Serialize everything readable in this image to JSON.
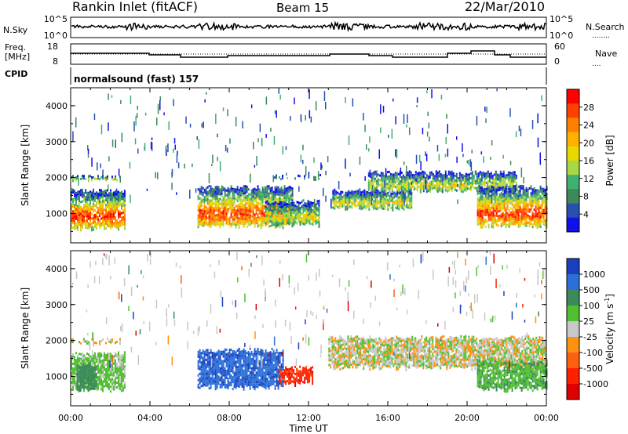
{
  "header": {
    "station": "Rankin Inlet (fitACF)",
    "beam": "Beam 15",
    "date": "22/Mar/2010"
  },
  "top_panels": {
    "nsky_label": "N.Sky",
    "nsearch_label": "N.Search",
    "nsearch_key": "........",
    "count_ticks": [
      "10^5",
      "10^0"
    ],
    "freq_label_1": "Freq.",
    "freq_label_2": "[MHz]",
    "freq_ticks": [
      "18",
      "8"
    ],
    "nave_label": "Nave",
    "nave_key": "....",
    "nave_ticks": [
      "60",
      "0"
    ],
    "cpid_label": "CPID",
    "cpid_text": "normalsound (fast) 157"
  },
  "axes": {
    "xlabel": "Time UT",
    "ylabel": "Slant Range [km]",
    "xticks": [
      "00:00",
      "04:00",
      "08:00",
      "12:00",
      "16:00",
      "20:00",
      "00:00"
    ],
    "yticks": [
      "1000",
      "2000",
      "3000",
      "4000"
    ]
  },
  "colorbars": {
    "power_label": "Power [dB]",
    "power_ticks": [
      "28",
      "24",
      "20",
      "16",
      "12",
      "8",
      "4"
    ],
    "power_colors": [
      "#ff0000",
      "#ff4000",
      "#ff8000",
      "#ffb000",
      "#e8d800",
      "#a8d848",
      "#40b070",
      "#3c8a5a",
      "#2850b0",
      "#1010e8"
    ],
    "velocity_label": "Velocity [m s",
    "velocity_label_sup": "-1",
    "velocity_label_end": "]",
    "velocity_ticks": [
      "1000",
      "500",
      "100",
      "25",
      "-25",
      "-100",
      "-500",
      "-1000"
    ],
    "velocity_colors": [
      "#1a40c0",
      "#2a70d8",
      "#3c8a5a",
      "#50c030",
      "#c8c8c8",
      "#ff9010",
      "#ff6010",
      "#ff2000",
      "#e00000"
    ]
  },
  "chart_data": {
    "type": "heatmap",
    "x_range_hours": [
      0,
      24
    ],
    "y_range_km": [
      180,
      4500
    ],
    "panels": [
      {
        "name": "power",
        "echo_regions": [
          {
            "t": [
              0.0,
              2.7
            ],
            "r": [
              550,
              1700
            ],
            "level": "high"
          },
          {
            "t": [
              0.0,
              2.5
            ],
            "r": [
              1900,
              2080
            ],
            "level": "mid"
          },
          {
            "t": [
              6.4,
              11.2
            ],
            "r": [
              600,
              1800
            ],
            "level": "high"
          },
          {
            "t": [
              9.8,
              12.5
            ],
            "r": [
              650,
              1400
            ],
            "level": "mid"
          },
          {
            "t": [
              10.1,
              12.6
            ],
            "r": [
              1950,
              2100
            ],
            "level": "low"
          },
          {
            "t": [
              13.2,
              17.2
            ],
            "r": [
              1100,
              1700
            ],
            "level": "mid"
          },
          {
            "t": [
              15.0,
              22.5
            ],
            "r": [
              1600,
              2200
            ],
            "level": "mid"
          },
          {
            "t": [
              20.5,
              24.0
            ],
            "r": [
              600,
              1800
            ],
            "level": "high"
          }
        ]
      },
      {
        "name": "velocity",
        "echo_regions": [
          {
            "t": [
              0.0,
              2.7
            ],
            "r": [
              600,
              1700
            ],
            "velocity": 25
          },
          {
            "t": [
              0.3,
              1.3
            ],
            "r": [
              600,
              1400
            ],
            "velocity": 100
          },
          {
            "t": [
              0.0,
              2.5
            ],
            "r": [
              1900,
              2080
            ],
            "velocity": 0
          },
          {
            "t": [
              6.4,
              10.7
            ],
            "r": [
              650,
              1800
            ],
            "velocity": 600
          },
          {
            "t": [
              10.5,
              12.2
            ],
            "r": [
              750,
              1300
            ],
            "velocity": -500
          },
          {
            "t": [
              13.0,
              24.0
            ],
            "r": [
              1200,
              2150
            ],
            "velocity": 0
          },
          {
            "t": [
              20.5,
              24.0
            ],
            "r": [
              600,
              1500
            ],
            "velocity": 50
          }
        ]
      }
    ]
  }
}
